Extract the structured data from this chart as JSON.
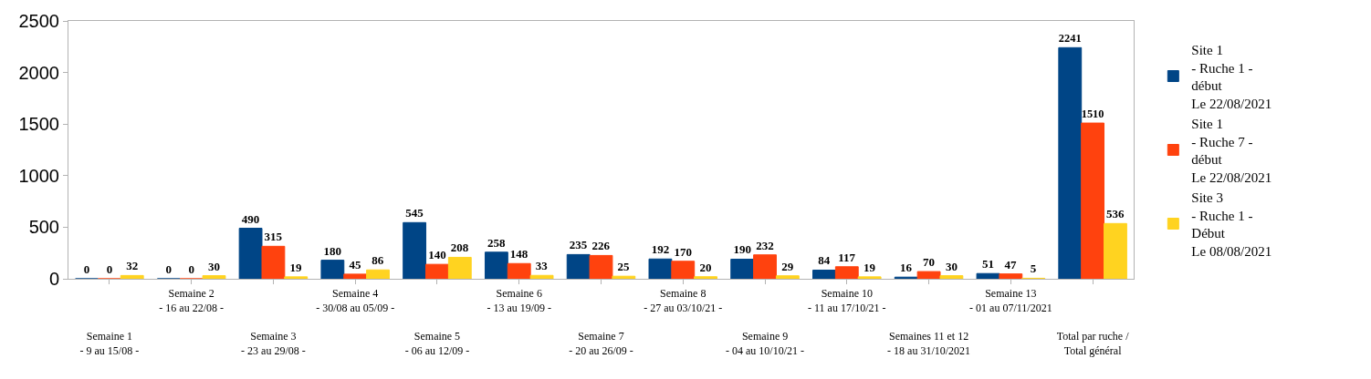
{
  "chart_data": {
    "type": "bar",
    "categories": [
      "Semaine 1\n- 9 au 15/08 -",
      "Semaine 2\n- 16 au 22/08 -",
      "Semaine 3\n- 23 au 29/08 -",
      "Semaine 4\n- 30/08 au 05/09 -",
      "Semaine 5\n- 06 au 12/09 -",
      "Semaine 6\n- 13 au 19/09 -",
      "Semaine 7\n- 20 au 26/09 -",
      "Semaine 8\n- 27 au 03/10/21 -",
      "Semaine 9\n- 04 au 10/10/21 -",
      "Semaine 10\n- 11 au 17/10/21 -",
      "Semaines 11 et 12\n- 18 au 31/10/2021",
      "Semaine 13\n- 01 au 07/11/2021",
      "Total par ruche /\nTotal général"
    ],
    "series": [
      {
        "name": "Site 1\n- Ruche 1 -\ndébut\nLe 22/08/2021",
        "color": "#004586",
        "values": [
          0,
          0,
          490,
          180,
          545,
          258,
          235,
          192,
          190,
          84,
          16,
          51,
          2241
        ]
      },
      {
        "name": "Site 1\n- Ruche 7 -\ndébut\nLe 22/08/2021",
        "color": "#ff420e",
        "values": [
          0,
          0,
          315,
          45,
          140,
          148,
          226,
          170,
          232,
          117,
          70,
          47,
          1510
        ]
      },
      {
        "name": "Site 3\n- Ruche 1 -\nDébut\nLe 08/08/2021",
        "color": "#ffd320",
        "values": [
          32,
          30,
          19,
          86,
          208,
          33,
          25,
          20,
          29,
          19,
          30,
          5,
          536
        ]
      }
    ],
    "ylim": [
      0,
      2500
    ],
    "yticks": [
      0,
      500,
      1000,
      1500,
      2000,
      2500
    ],
    "data_labels": true,
    "legend": "right"
  }
}
